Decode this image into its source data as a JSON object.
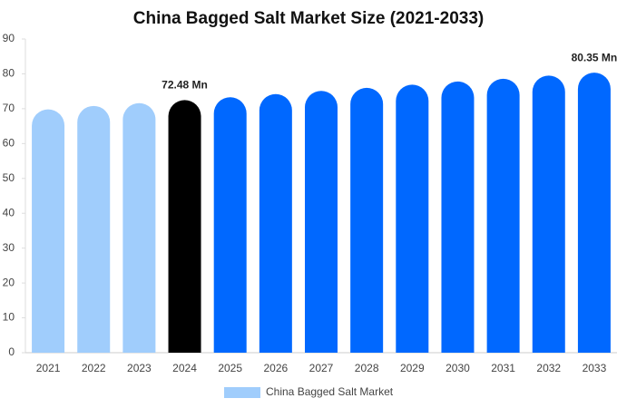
{
  "chart_data": {
    "type": "bar",
    "title": "China Bagged Salt Market Size (2021-2033)",
    "categories": [
      "2021",
      "2022",
      "2023",
      "2024",
      "2025",
      "2026",
      "2027",
      "2028",
      "2029",
      "2030",
      "2031",
      "2032",
      "2033"
    ],
    "series": [
      {
        "name": "China Bagged Salt Market",
        "color": "#a0cdfc",
        "colors": [
          "#a0cdfc",
          "#a0cdfc",
          "#a0cdfc",
          "#000000",
          "#0068ff",
          "#0068ff",
          "#0068ff",
          "#0068ff",
          "#0068ff",
          "#0068ff",
          "#0068ff",
          "#0068ff",
          "#0068ff"
        ],
        "values": [
          69.8,
          70.8,
          71.6,
          72.48,
          73.3,
          74.2,
          75.1,
          76.0,
          76.9,
          77.8,
          78.6,
          79.5,
          80.35
        ],
        "value_labels": [
          null,
          null,
          null,
          "72.48 Mn",
          null,
          null,
          null,
          null,
          null,
          null,
          null,
          null,
          "80.35 Mn"
        ]
      }
    ],
    "ylim": [
      0,
      90
    ],
    "yticks": [
      0,
      10,
      20,
      30,
      40,
      50,
      60,
      70,
      80,
      90
    ],
    "grid": false,
    "legend": "bottom"
  }
}
